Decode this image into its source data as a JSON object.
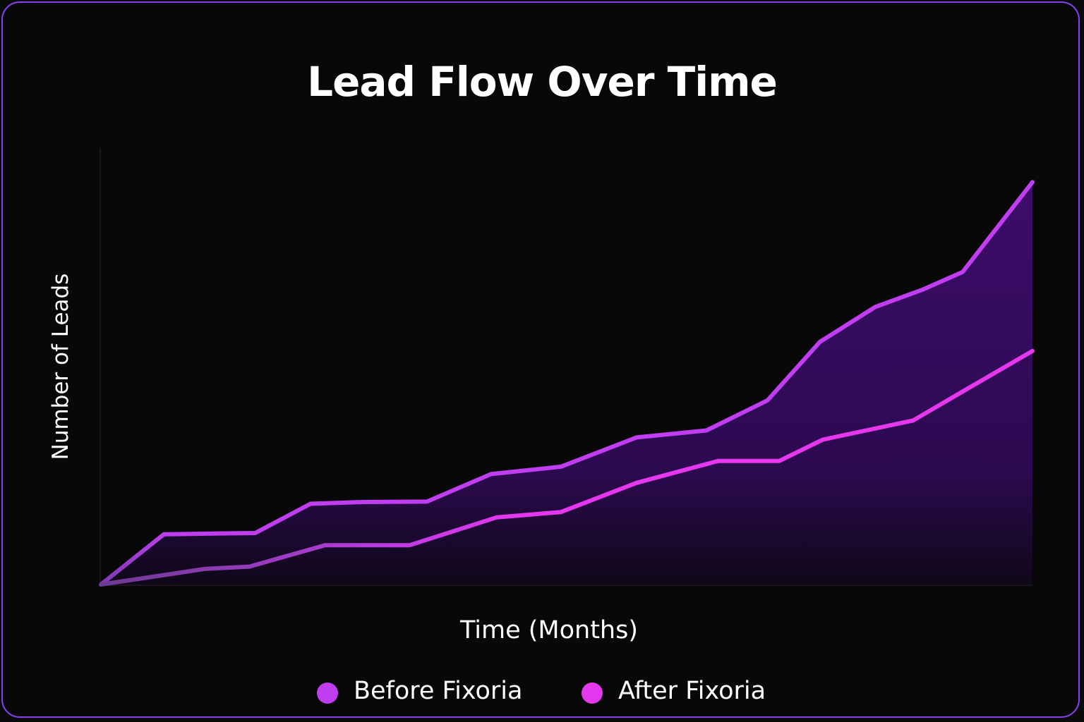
{
  "chart_data": {
    "type": "area",
    "title": "Lead Flow Over Time",
    "xlabel": "Time (Months)",
    "ylabel": "Number of Leads",
    "x": [
      0,
      1,
      2,
      3,
      4,
      5,
      6,
      7,
      8,
      9,
      10,
      11,
      12,
      13,
      14,
      15,
      16
    ],
    "xlim": [
      0,
      16
    ],
    "ylim": [
      0,
      100
    ],
    "grid": false,
    "legend_position": "bottom-center",
    "series": [
      {
        "name": "Before Fixoria",
        "color": "#c13df2",
        "points": [
          [
            0,
            0
          ],
          [
            1.08,
            11.5
          ],
          [
            2.0,
            11.7
          ],
          [
            2.65,
            11.8
          ],
          [
            3.6,
            18.5
          ],
          [
            4.5,
            18.9
          ],
          [
            5.6,
            19.0
          ],
          [
            6.7,
            25.3
          ],
          [
            7.9,
            27.0
          ],
          [
            9.2,
            33.7
          ],
          [
            10.4,
            35.3
          ],
          [
            11.45,
            42.2
          ],
          [
            12.35,
            55.6
          ],
          [
            13.3,
            63.6
          ],
          [
            14.1,
            67.5
          ],
          [
            14.8,
            71.6
          ],
          [
            16.0,
            92.2
          ]
        ]
      },
      {
        "name": "After Fixoria",
        "color": "#e537ee",
        "points": [
          [
            0,
            0
          ],
          [
            1.8,
            3.6
          ],
          [
            2.55,
            4.1
          ],
          [
            3.85,
            9.0
          ],
          [
            5.3,
            9.0
          ],
          [
            6.8,
            15.4
          ],
          [
            7.9,
            16.6
          ],
          [
            9.2,
            23.3
          ],
          [
            10.6,
            28.3
          ],
          [
            11.65,
            28.3
          ],
          [
            12.4,
            33.2
          ],
          [
            13.95,
            37.6
          ],
          [
            14.9,
            45.0
          ],
          [
            16.0,
            53.5
          ]
        ]
      }
    ]
  }
}
